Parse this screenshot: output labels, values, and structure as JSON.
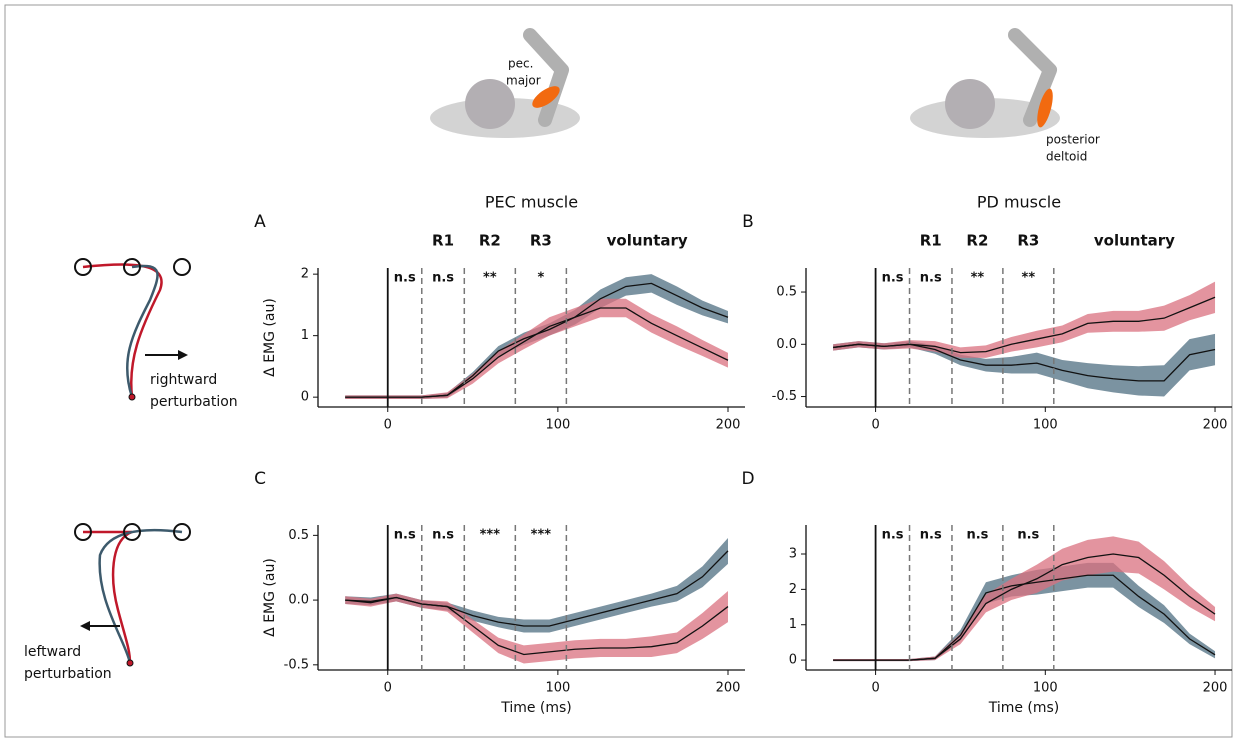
{
  "muscle_images": [
    {
      "label_lines": [
        "pec.",
        "major"
      ]
    },
    {
      "label_lines": [
        "posterior",
        "deltoid"
      ]
    }
  ],
  "trajectory_labels": [
    [
      "rightward",
      "perturbation"
    ],
    [
      "leftward",
      "perturbation"
    ]
  ],
  "chart_data": [
    {
      "type": "line",
      "panel": "A",
      "title": "PEC muscle",
      "ylabel": "Δ EMG (au)",
      "epochs": [
        "R1",
        "R2",
        "R3",
        "voluntary"
      ],
      "markers": [
        0,
        20,
        45,
        75,
        105
      ],
      "interval_labels": [
        "n.s",
        "n.s",
        "**",
        "*"
      ],
      "xlim": [
        -41,
        210
      ],
      "xticks": [
        0,
        100,
        200
      ],
      "ylim": [
        -0.16,
        2.1
      ],
      "yticks": [
        0,
        1,
        2
      ],
      "x": [
        -25,
        -10,
        5,
        20,
        35,
        50,
        65,
        80,
        95,
        110,
        125,
        140,
        155,
        170,
        185,
        200
      ],
      "series": [
        {
          "color": "#4f6f82",
          "values": [
            0,
            0,
            0,
            0,
            0.03,
            0.35,
            0.75,
            0.95,
            1.1,
            1.3,
            1.6,
            1.8,
            1.85,
            1.65,
            1.45,
            1.3
          ],
          "error": [
            0.03,
            0.03,
            0.03,
            0.03,
            0.04,
            0.06,
            0.08,
            0.1,
            0.1,
            0.12,
            0.15,
            0.15,
            0.15,
            0.15,
            0.12,
            0.1
          ]
        },
        {
          "color": "#d9707f",
          "values": [
            0,
            0,
            0,
            0,
            0.03,
            0.3,
            0.65,
            0.9,
            1.15,
            1.3,
            1.45,
            1.45,
            1.2,
            1.0,
            0.8,
            0.6
          ],
          "error": [
            0.03,
            0.03,
            0.03,
            0.03,
            0.05,
            0.08,
            0.1,
            0.12,
            0.15,
            0.15,
            0.15,
            0.15,
            0.15,
            0.15,
            0.13,
            0.12
          ]
        }
      ]
    },
    {
      "type": "line",
      "panel": "B",
      "title": "PD muscle",
      "epochs": [
        "R1",
        "R2",
        "R3",
        "voluntary"
      ],
      "markers": [
        0,
        20,
        45,
        75,
        105
      ],
      "interval_labels": [
        "n.s",
        "n.s",
        "**",
        "**"
      ],
      "xlim": [
        -41,
        210
      ],
      "xticks": [
        0,
        100,
        200
      ],
      "ylim": [
        -0.6,
        0.73
      ],
      "yticks": [
        -0.5,
        {
          "value": 0,
          "label": "0.0"
        },
        0.5
      ],
      "x": [
        -25,
        -10,
        5,
        20,
        35,
        50,
        65,
        80,
        95,
        110,
        125,
        140,
        155,
        170,
        185,
        200
      ],
      "series": [
        {
          "color": "#4f6f82",
          "values": [
            -0.03,
            0,
            -0.02,
            0,
            -0.05,
            -0.15,
            -0.2,
            -0.2,
            -0.18,
            -0.25,
            -0.3,
            -0.33,
            -0.35,
            -0.35,
            -0.1,
            -0.05
          ],
          "error": [
            0.03,
            0.03,
            0.03,
            0.03,
            0.04,
            0.05,
            0.06,
            0.08,
            0.1,
            0.1,
            0.12,
            0.13,
            0.14,
            0.15,
            0.15,
            0.15
          ]
        },
        {
          "color": "#d9707f",
          "values": [
            -0.03,
            0,
            -0.02,
            0,
            -0.02,
            -0.08,
            -0.07,
            0,
            0.05,
            0.1,
            0.2,
            0.22,
            0.22,
            0.25,
            0.35,
            0.45
          ],
          "error": [
            0.03,
            0.03,
            0.03,
            0.04,
            0.05,
            0.05,
            0.06,
            0.07,
            0.08,
            0.08,
            0.09,
            0.1,
            0.1,
            0.12,
            0.12,
            0.15
          ]
        }
      ]
    },
    {
      "type": "line",
      "panel": "C",
      "ylabel": "Δ EMG (au)",
      "xlabel": "Time (ms)",
      "markers": [
        0,
        20,
        45,
        75,
        105
      ],
      "interval_labels": [
        "n.s",
        "n.s",
        "***",
        "***"
      ],
      "xlim": [
        -41,
        210
      ],
      "xticks": [
        0,
        100,
        200
      ],
      "ylim": [
        -0.54,
        0.58
      ],
      "yticks": [
        -0.5,
        {
          "value": 0,
          "label": "0.0"
        },
        0.5
      ],
      "x": [
        -25,
        -10,
        5,
        20,
        35,
        50,
        65,
        80,
        95,
        110,
        125,
        140,
        155,
        170,
        185,
        200
      ],
      "series": [
        {
          "color": "#4f6f82",
          "values": [
            0,
            -0.01,
            0.02,
            -0.03,
            -0.05,
            -0.12,
            -0.17,
            -0.2,
            -0.2,
            -0.15,
            -0.1,
            -0.05,
            0,
            0.05,
            0.18,
            0.38
          ],
          "error": [
            0.03,
            0.03,
            0.03,
            0.03,
            0.03,
            0.04,
            0.04,
            0.05,
            0.05,
            0.05,
            0.05,
            0.05,
            0.05,
            0.06,
            0.08,
            0.1
          ]
        },
        {
          "color": "#d9707f",
          "values": [
            0,
            -0.02,
            0.02,
            -0.03,
            -0.05,
            -0.2,
            -0.35,
            -0.42,
            -0.4,
            -0.38,
            -0.37,
            -0.37,
            -0.36,
            -0.33,
            -0.2,
            -0.05
          ],
          "error": [
            0.03,
            0.03,
            0.03,
            0.03,
            0.04,
            0.05,
            0.06,
            0.07,
            0.07,
            0.07,
            0.07,
            0.07,
            0.08,
            0.08,
            0.1,
            0.12
          ]
        }
      ]
    },
    {
      "type": "line",
      "panel": "D",
      "xlabel": "Time (ms)",
      "markers": [
        0,
        20,
        45,
        75,
        105
      ],
      "interval_labels": [
        "n.s",
        "n.s",
        "n.s",
        "n.s"
      ],
      "xlim": [
        -41,
        210
      ],
      "xticks": [
        0,
        100,
        200
      ],
      "ylim": [
        -0.28,
        3.82
      ],
      "yticks": [
        0,
        1,
        2,
        3
      ],
      "x": [
        -25,
        -10,
        5,
        20,
        35,
        50,
        65,
        80,
        95,
        110,
        125,
        140,
        155,
        170,
        185,
        200
      ],
      "series": [
        {
          "color": "#4f6f82",
          "values": [
            0,
            0,
            0,
            0,
            0.05,
            0.7,
            1.9,
            2.1,
            2.2,
            2.3,
            2.4,
            2.4,
            1.8,
            1.3,
            0.6,
            0.15
          ],
          "error": [
            0.03,
            0.03,
            0.03,
            0.03,
            0.05,
            0.15,
            0.3,
            0.3,
            0.35,
            0.35,
            0.35,
            0.35,
            0.3,
            0.25,
            0.15,
            0.1
          ]
        },
        {
          "color": "#d9707f",
          "values": [
            0,
            0,
            0,
            0,
            0.05,
            0.6,
            1.6,
            2.0,
            2.3,
            2.7,
            2.9,
            3.0,
            2.9,
            2.4,
            1.8,
            1.3
          ],
          "error": [
            0.03,
            0.03,
            0.03,
            0.03,
            0.05,
            0.15,
            0.25,
            0.3,
            0.4,
            0.45,
            0.5,
            0.5,
            0.45,
            0.4,
            0.3,
            0.2
          ]
        }
      ]
    }
  ]
}
